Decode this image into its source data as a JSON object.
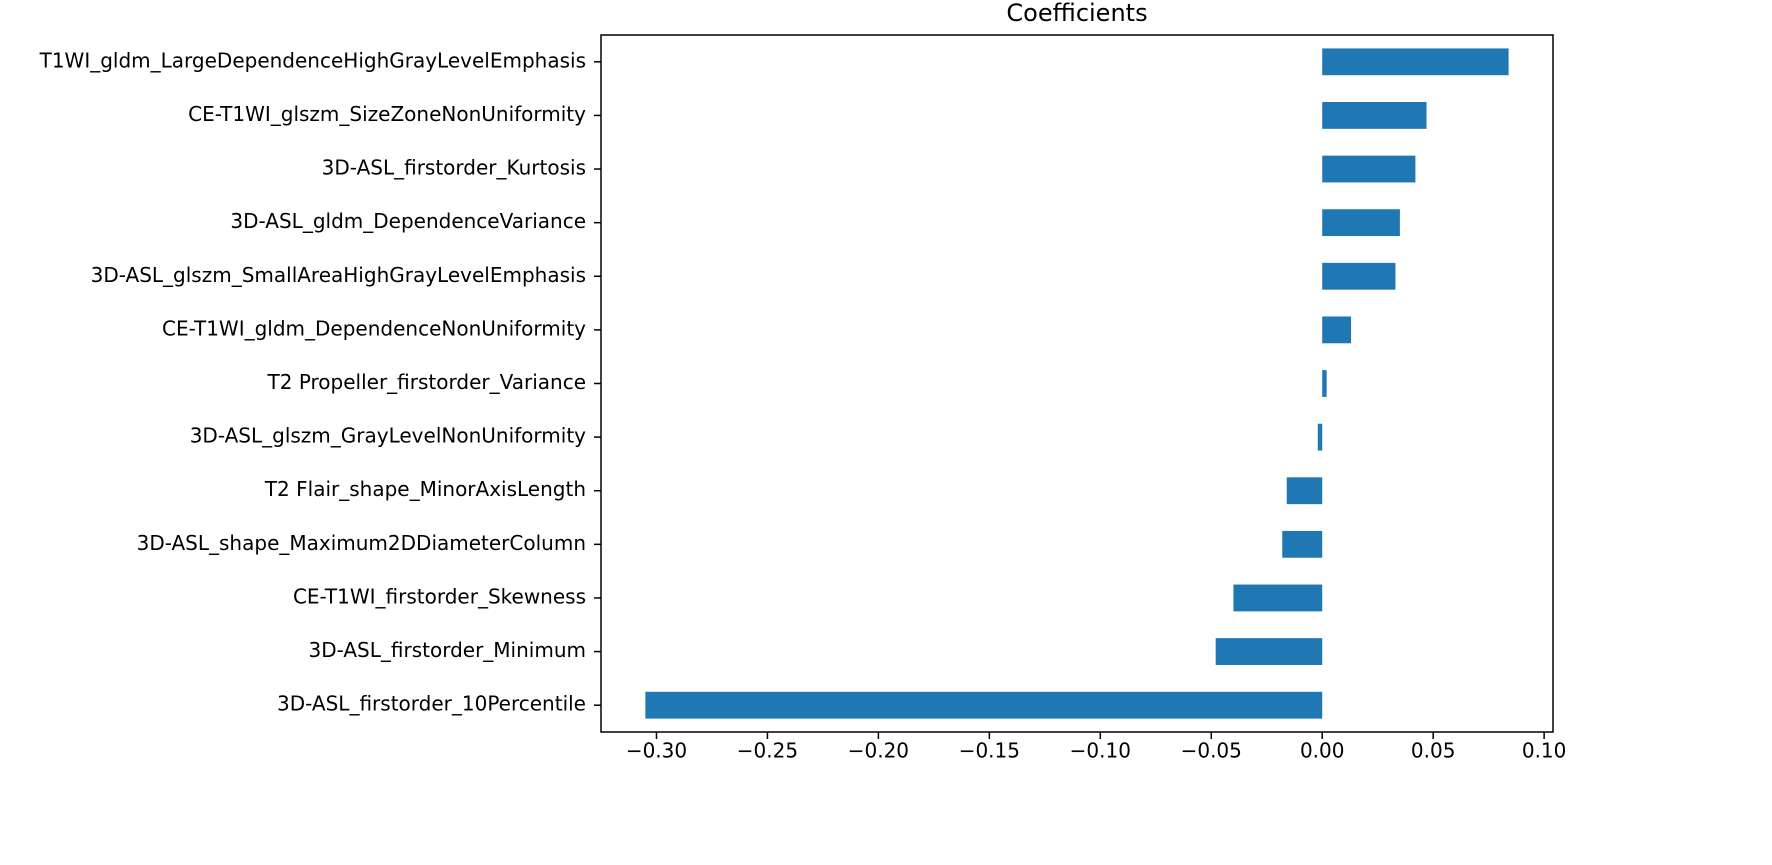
{
  "chart_data": {
    "type": "barh",
    "title": "Coefficients",
    "categories": [
      "T1WI_gldm_LargeDependenceHighGrayLevelEmphasis",
      "CE-T1WI_glszm_SizeZoneNonUniformity",
      "3D-ASL_firstorder_Kurtosis",
      "3D-ASL_gldm_DependenceVariance",
      "3D-ASL_glszm_SmallAreaHighGrayLevelEmphasis",
      "CE-T1WI_gldm_DependenceNonUniformity",
      "T2 Propeller_firstorder_Variance",
      "3D-ASL_glszm_GrayLevelNonUniformity",
      "T2 Flair_shape_MinorAxisLength",
      "3D-ASL_shape_Maximum2DDiameterColumn",
      "CE-T1WI_firstorder_Skewness",
      "3D-ASL_firstorder_Minimum",
      "3D-ASL_firstorder_10Percentile"
    ],
    "values": [
      0.084,
      0.047,
      0.042,
      0.035,
      0.033,
      0.013,
      0.002,
      -0.002,
      -0.016,
      -0.018,
      -0.04,
      -0.048,
      -0.305
    ],
    "color": "#1f77b4",
    "xlim": [
      -0.325,
      0.104
    ],
    "xticks": [
      {
        "value": -0.3,
        "label": "−0.30"
      },
      {
        "value": -0.25,
        "label": "−0.25"
      },
      {
        "value": -0.2,
        "label": "−0.20"
      },
      {
        "value": -0.15,
        "label": "−0.15"
      },
      {
        "value": -0.1,
        "label": "−0.10"
      },
      {
        "value": -0.05,
        "label": "−0.05"
      },
      {
        "value": 0,
        "label": "0.00"
      },
      {
        "value": 0.05,
        "label": "0.05"
      },
      {
        "value": 0.1,
        "label": "0.10"
      }
    ],
    "grid": false
  }
}
